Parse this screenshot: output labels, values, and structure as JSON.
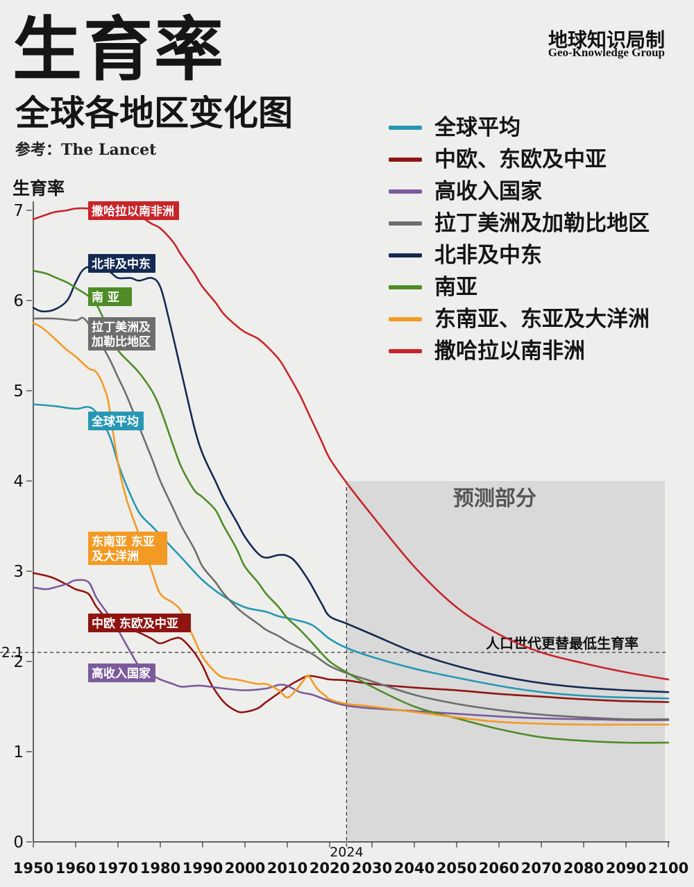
{
  "title": "生育率",
  "subtitle": "全球各地区变化图",
  "source": "参考：The Lancet",
  "brand": {
    "cn": "地球知识局制",
    "en": "Geo-Knowledge Group"
  },
  "chart_data": {
    "type": "line",
    "ylabel": "生育率",
    "xlim": [
      1950,
      2100
    ],
    "ylim": [
      0,
      7
    ],
    "x_ticks": [
      1950,
      1960,
      1970,
      1980,
      1990,
      2000,
      2010,
      2020,
      2030,
      2040,
      2050,
      2060,
      2070,
      2080,
      2090,
      2100
    ],
    "y_ticks": [
      0,
      1,
      2,
      3,
      4,
      5,
      6,
      7
    ],
    "grid": false,
    "legend_position": "top-right",
    "forecast_region": {
      "label": "预测部分",
      "start": 2024,
      "end": 2100
    },
    "reference_line": {
      "label": "人口世代更替最低生育率",
      "value": 2.1,
      "tick_label": "2.1"
    },
    "current_year": {
      "value": 2024,
      "label": "2024"
    },
    "series": [
      {
        "name": "全球平均",
        "color": "#2797b3",
        "callout": "全球平均",
        "points": [
          [
            1950,
            4.85
          ],
          [
            1955,
            4.83
          ],
          [
            1960,
            4.8
          ],
          [
            1963,
            4.82
          ],
          [
            1965,
            4.75
          ],
          [
            1968,
            4.5
          ],
          [
            1970,
            4.2
          ],
          [
            1972,
            3.95
          ],
          [
            1975,
            3.65
          ],
          [
            1978,
            3.5
          ],
          [
            1980,
            3.4
          ],
          [
            1985,
            3.15
          ],
          [
            1990,
            2.9
          ],
          [
            1995,
            2.72
          ],
          [
            2000,
            2.6
          ],
          [
            2005,
            2.55
          ],
          [
            2008,
            2.5
          ],
          [
            2012,
            2.46
          ],
          [
            2016,
            2.4
          ],
          [
            2020,
            2.25
          ],
          [
            2024,
            2.15
          ],
          [
            2030,
            2.05
          ],
          [
            2040,
            1.92
          ],
          [
            2050,
            1.82
          ],
          [
            2060,
            1.73
          ],
          [
            2070,
            1.66
          ],
          [
            2080,
            1.62
          ],
          [
            2090,
            1.6
          ],
          [
            2100,
            1.59
          ]
        ]
      },
      {
        "name": "中欧、东欧及中亚",
        "color": "#8f1411",
        "callout": "中欧 东欧及中亚",
        "points": [
          [
            1950,
            2.98
          ],
          [
            1953,
            2.95
          ],
          [
            1955,
            2.92
          ],
          [
            1958,
            2.85
          ],
          [
            1960,
            2.8
          ],
          [
            1963,
            2.75
          ],
          [
            1965,
            2.6
          ],
          [
            1968,
            2.45
          ],
          [
            1970,
            2.4
          ],
          [
            1973,
            2.35
          ],
          [
            1975,
            2.32
          ],
          [
            1978,
            2.25
          ],
          [
            1980,
            2.2
          ],
          [
            1983,
            2.25
          ],
          [
            1985,
            2.25
          ],
          [
            1988,
            2.1
          ],
          [
            1990,
            1.95
          ],
          [
            1992,
            1.75
          ],
          [
            1995,
            1.55
          ],
          [
            1998,
            1.45
          ],
          [
            2000,
            1.44
          ],
          [
            2003,
            1.48
          ],
          [
            2005,
            1.55
          ],
          [
            2008,
            1.65
          ],
          [
            2010,
            1.72
          ],
          [
            2013,
            1.8
          ],
          [
            2015,
            1.84
          ],
          [
            2018,
            1.82
          ],
          [
            2020,
            1.8
          ],
          [
            2024,
            1.79
          ],
          [
            2030,
            1.75
          ],
          [
            2040,
            1.71
          ],
          [
            2050,
            1.68
          ],
          [
            2060,
            1.64
          ],
          [
            2070,
            1.61
          ],
          [
            2080,
            1.58
          ],
          [
            2090,
            1.56
          ],
          [
            2100,
            1.55
          ]
        ]
      },
      {
        "name": "高收入国家",
        "color": "#7b5b9b",
        "callout": "高收入国家",
        "points": [
          [
            1950,
            2.82
          ],
          [
            1953,
            2.8
          ],
          [
            1955,
            2.82
          ],
          [
            1958,
            2.86
          ],
          [
            1960,
            2.9
          ],
          [
            1963,
            2.88
          ],
          [
            1965,
            2.7
          ],
          [
            1968,
            2.5
          ],
          [
            1970,
            2.35
          ],
          [
            1973,
            2.1
          ],
          [
            1975,
            1.95
          ],
          [
            1978,
            1.85
          ],
          [
            1980,
            1.8
          ],
          [
            1983,
            1.75
          ],
          [
            1985,
            1.72
          ],
          [
            1988,
            1.73
          ],
          [
            1990,
            1.73
          ],
          [
            1995,
            1.7
          ],
          [
            2000,
            1.68
          ],
          [
            2005,
            1.7
          ],
          [
            2008,
            1.74
          ],
          [
            2010,
            1.73
          ],
          [
            2013,
            1.66
          ],
          [
            2016,
            1.63
          ],
          [
            2020,
            1.56
          ],
          [
            2024,
            1.51
          ],
          [
            2030,
            1.48
          ],
          [
            2040,
            1.45
          ],
          [
            2050,
            1.42
          ],
          [
            2060,
            1.39
          ],
          [
            2070,
            1.37
          ],
          [
            2080,
            1.36
          ],
          [
            2090,
            1.35
          ],
          [
            2100,
            1.35
          ]
        ]
      },
      {
        "name": "拉丁美洲及加勒比地区",
        "color": "#6d6d6d",
        "callout": "拉丁美洲及\n加勒比地区",
        "points": [
          [
            1950,
            5.8
          ],
          [
            1955,
            5.8
          ],
          [
            1960,
            5.78
          ],
          [
            1962,
            5.8
          ],
          [
            1965,
            5.6
          ],
          [
            1968,
            5.35
          ],
          [
            1970,
            5.15
          ],
          [
            1972,
            4.95
          ],
          [
            1975,
            4.6
          ],
          [
            1978,
            4.25
          ],
          [
            1980,
            4.0
          ],
          [
            1983,
            3.7
          ],
          [
            1985,
            3.5
          ],
          [
            1988,
            3.25
          ],
          [
            1990,
            3.05
          ],
          [
            1993,
            2.88
          ],
          [
            1995,
            2.75
          ],
          [
            1998,
            2.6
          ],
          [
            2000,
            2.52
          ],
          [
            2003,
            2.42
          ],
          [
            2005,
            2.35
          ],
          [
            2008,
            2.28
          ],
          [
            2010,
            2.22
          ],
          [
            2013,
            2.15
          ],
          [
            2016,
            2.08
          ],
          [
            2020,
            1.95
          ],
          [
            2024,
            1.87
          ],
          [
            2030,
            1.78
          ],
          [
            2040,
            1.63
          ],
          [
            2050,
            1.53
          ],
          [
            2060,
            1.46
          ],
          [
            2070,
            1.41
          ],
          [
            2080,
            1.38
          ],
          [
            2090,
            1.36
          ],
          [
            2100,
            1.36
          ]
        ]
      },
      {
        "name": "北非及中东",
        "color": "#142a52",
        "callout": "北非及中东",
        "points": [
          [
            1950,
            5.92
          ],
          [
            1952,
            5.88
          ],
          [
            1955,
            5.9
          ],
          [
            1958,
            6.0
          ],
          [
            1960,
            6.2
          ],
          [
            1962,
            6.35
          ],
          [
            1965,
            6.38
          ],
          [
            1968,
            6.32
          ],
          [
            1970,
            6.25
          ],
          [
            1973,
            6.25
          ],
          [
            1975,
            6.22
          ],
          [
            1978,
            6.25
          ],
          [
            1980,
            6.15
          ],
          [
            1982,
            5.8
          ],
          [
            1985,
            5.2
          ],
          [
            1988,
            4.6
          ],
          [
            1990,
            4.3
          ],
          [
            1993,
            4.0
          ],
          [
            1995,
            3.8
          ],
          [
            1998,
            3.55
          ],
          [
            2000,
            3.38
          ],
          [
            2003,
            3.2
          ],
          [
            2005,
            3.15
          ],
          [
            2008,
            3.18
          ],
          [
            2010,
            3.17
          ],
          [
            2012,
            3.1
          ],
          [
            2015,
            2.9
          ],
          [
            2018,
            2.65
          ],
          [
            2020,
            2.5
          ],
          [
            2024,
            2.42
          ],
          [
            2030,
            2.3
          ],
          [
            2040,
            2.1
          ],
          [
            2050,
            1.95
          ],
          [
            2060,
            1.84
          ],
          [
            2070,
            1.76
          ],
          [
            2080,
            1.71
          ],
          [
            2090,
            1.68
          ],
          [
            2100,
            1.66
          ]
        ]
      },
      {
        "name": "南亚",
        "color": "#4d8c26",
        "callout": "南 亚",
        "points": [
          [
            1950,
            6.33
          ],
          [
            1953,
            6.3
          ],
          [
            1955,
            6.26
          ],
          [
            1958,
            6.2
          ],
          [
            1960,
            6.14
          ],
          [
            1963,
            6.05
          ],
          [
            1965,
            5.95
          ],
          [
            1968,
            5.65
          ],
          [
            1970,
            5.45
          ],
          [
            1973,
            5.3
          ],
          [
            1975,
            5.2
          ],
          [
            1978,
            5.0
          ],
          [
            1980,
            4.8
          ],
          [
            1983,
            4.4
          ],
          [
            1985,
            4.15
          ],
          [
            1988,
            3.9
          ],
          [
            1990,
            3.82
          ],
          [
            1993,
            3.68
          ],
          [
            1995,
            3.5
          ],
          [
            1998,
            3.25
          ],
          [
            2000,
            3.05
          ],
          [
            2003,
            2.88
          ],
          [
            2005,
            2.75
          ],
          [
            2008,
            2.6
          ],
          [
            2010,
            2.48
          ],
          [
            2013,
            2.35
          ],
          [
            2016,
            2.2
          ],
          [
            2020,
            2.0
          ],
          [
            2024,
            1.88
          ],
          [
            2030,
            1.72
          ],
          [
            2040,
            1.5
          ],
          [
            2050,
            1.37
          ],
          [
            2060,
            1.25
          ],
          [
            2070,
            1.16
          ],
          [
            2080,
            1.12
          ],
          [
            2090,
            1.1
          ],
          [
            2100,
            1.1
          ]
        ]
      },
      {
        "name": "东南亚、东亚及大洋洲",
        "color": "#f39a24",
        "callout": "东南亚 东亚\n及大洋洲",
        "points": [
          [
            1950,
            5.75
          ],
          [
            1952,
            5.7
          ],
          [
            1955,
            5.58
          ],
          [
            1958,
            5.45
          ],
          [
            1960,
            5.38
          ],
          [
            1963,
            5.25
          ],
          [
            1965,
            5.2
          ],
          [
            1967,
            5.0
          ],
          [
            1968,
            4.8
          ],
          [
            1970,
            4.2
          ],
          [
            1972,
            3.8
          ],
          [
            1975,
            3.4
          ],
          [
            1978,
            3.0
          ],
          [
            1980,
            2.75
          ],
          [
            1983,
            2.65
          ],
          [
            1985,
            2.55
          ],
          [
            1988,
            2.25
          ],
          [
            1990,
            2.05
          ],
          [
            1993,
            1.88
          ],
          [
            1995,
            1.82
          ],
          [
            1998,
            1.8
          ],
          [
            2000,
            1.78
          ],
          [
            2003,
            1.75
          ],
          [
            2005,
            1.75
          ],
          [
            2008,
            1.68
          ],
          [
            2010,
            1.6
          ],
          [
            2012,
            1.68
          ],
          [
            2014,
            1.8
          ],
          [
            2015,
            1.84
          ],
          [
            2017,
            1.7
          ],
          [
            2019,
            1.62
          ],
          [
            2020,
            1.58
          ],
          [
            2024,
            1.53
          ],
          [
            2030,
            1.5
          ],
          [
            2040,
            1.44
          ],
          [
            2050,
            1.38
          ],
          [
            2060,
            1.33
          ],
          [
            2070,
            1.31
          ],
          [
            2080,
            1.3
          ],
          [
            2090,
            1.3
          ],
          [
            2100,
            1.3
          ]
        ]
      },
      {
        "name": "撒哈拉以南非洲",
        "color": "#c8242b",
        "callout": "撒哈拉以南非洲",
        "points": [
          [
            1950,
            6.9
          ],
          [
            1953,
            6.95
          ],
          [
            1955,
            6.98
          ],
          [
            1958,
            7.0
          ],
          [
            1960,
            7.02
          ],
          [
            1963,
            7.02
          ],
          [
            1965,
            7.0
          ],
          [
            1968,
            7.0
          ],
          [
            1970,
            7.0
          ],
          [
            1973,
            6.98
          ],
          [
            1975,
            6.94
          ],
          [
            1978,
            6.85
          ],
          [
            1980,
            6.8
          ],
          [
            1983,
            6.65
          ],
          [
            1985,
            6.5
          ],
          [
            1988,
            6.3
          ],
          [
            1990,
            6.15
          ],
          [
            1993,
            5.98
          ],
          [
            1995,
            5.85
          ],
          [
            1998,
            5.72
          ],
          [
            2000,
            5.65
          ],
          [
            2003,
            5.58
          ],
          [
            2005,
            5.5
          ],
          [
            2008,
            5.35
          ],
          [
            2010,
            5.2
          ],
          [
            2013,
            4.95
          ],
          [
            2015,
            4.75
          ],
          [
            2018,
            4.45
          ],
          [
            2020,
            4.25
          ],
          [
            2024,
            3.98
          ],
          [
            2030,
            3.62
          ],
          [
            2040,
            3.05
          ],
          [
            2050,
            2.6
          ],
          [
            2060,
            2.3
          ],
          [
            2070,
            2.1
          ],
          [
            2080,
            1.98
          ],
          [
            2090,
            1.88
          ],
          [
            2100,
            1.8
          ]
        ]
      }
    ]
  }
}
